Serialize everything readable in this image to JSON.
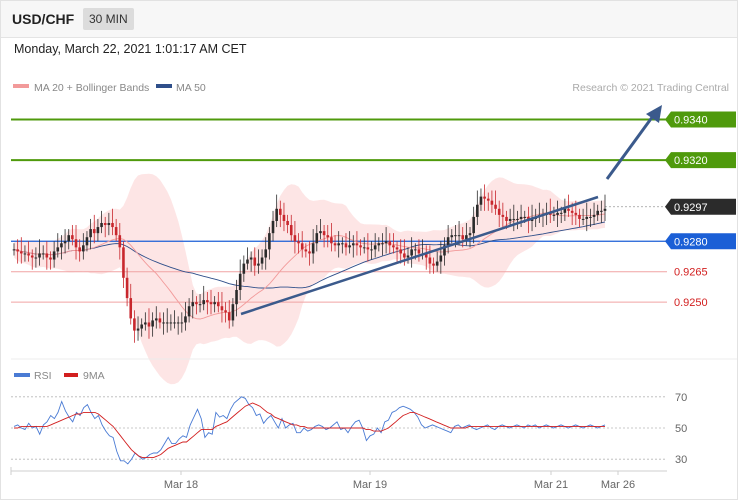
{
  "header": {
    "symbol": "USD/CHF",
    "timeframe": "30 MIN",
    "datetime": "Monday, March 22, 2021 1:01:17 AM CET"
  },
  "legend": {
    "ma20_label": "MA 20 + Bollinger Bands",
    "ma50_label": "MA 50",
    "ma20_color": "#f29a9a",
    "ma50_color": "#2f4f8a",
    "credit": "Research © 2021 Trading Central"
  },
  "colors": {
    "green": "#4f9a0c",
    "blue": "#1b5fd6",
    "red": "#d21f1f",
    "bull": "#2b2b2b",
    "bear": "#c8272d",
    "band": "#fde1e1",
    "trend": "#3b5a8c",
    "rsi": "#4a7bd4",
    "rsi_ma": "#d21f1f"
  },
  "chart_data": [
    {
      "type": "candlestick",
      "title": "",
      "ylim": [
        0.9222,
        0.9356
      ],
      "xlabels": [
        "Mar 18",
        "Mar 19",
        "Mar 21",
        "Mar 26"
      ],
      "close": [
        0.9276,
        0.9275,
        0.9274,
        0.9274,
        0.9273,
        0.9272,
        0.9272,
        0.9274,
        0.9274,
        0.9272,
        0.9271,
        0.9275,
        0.9277,
        0.9279,
        0.928,
        0.9283,
        0.9281,
        0.9277,
        0.9275,
        0.9278,
        0.9282,
        0.9286,
        0.9284,
        0.9287,
        0.9289,
        0.9288,
        0.9289,
        0.9287,
        0.9283,
        0.9277,
        0.9262,
        0.9252,
        0.9242,
        0.9236,
        0.9237,
        0.9239,
        0.924,
        0.9238,
        0.9241,
        0.9242,
        0.924,
        0.924,
        0.924,
        0.924,
        0.924,
        0.924,
        0.924,
        0.9243,
        0.9248,
        0.925,
        0.9249,
        0.9249,
        0.9251,
        0.925,
        0.9249,
        0.925,
        0.9248,
        0.9246,
        0.9245,
        0.9241,
        0.9249,
        0.9256,
        0.9264,
        0.9269,
        0.9271,
        0.9272,
        0.9268,
        0.9269,
        0.9272,
        0.9276,
        0.9284,
        0.929,
        0.9296,
        0.9293,
        0.929,
        0.9288,
        0.9283,
        0.928,
        0.9279,
        0.9276,
        0.9275,
        0.9274,
        0.9279,
        0.9284,
        0.9285,
        0.9283,
        0.9282,
        0.9279,
        0.9278,
        0.9279,
        0.9279,
        0.9277,
        0.9278,
        0.9279,
        0.9278,
        0.9277,
        0.9277,
        0.9276,
        0.9276,
        0.9278,
        0.9279,
        0.9279,
        0.928,
        0.9278,
        0.9277,
        0.9276,
        0.9274,
        0.9272,
        0.9273,
        0.9276,
        0.9276,
        0.9274,
        0.9274,
        0.9272,
        0.9269,
        0.9268,
        0.927,
        0.9273,
        0.9278,
        0.9282,
        0.9283,
        0.9283,
        0.9283,
        0.9281,
        0.9283,
        0.9284,
        0.9292,
        0.9298,
        0.9302,
        0.9301,
        0.93,
        0.9298,
        0.9296,
        0.9293,
        0.9292,
        0.929,
        0.9291,
        0.9291,
        0.9291,
        0.9292,
        0.9292,
        0.929,
        0.9291,
        0.9292,
        0.9293,
        0.9293,
        0.9294,
        0.9293,
        0.9293,
        0.9294,
        0.9294,
        0.9296,
        0.9295,
        0.9294,
        0.9293,
        0.9291,
        0.9291,
        0.9292,
        0.9292,
        0.9293,
        0.9295,
        0.9295,
        0.9296
      ],
      "levels": [
        {
          "label": "0.9340",
          "value": 0.934,
          "kind": "resistance-2"
        },
        {
          "label": "0.9320",
          "value": 0.932,
          "kind": "resistance-1"
        },
        {
          "label": "0.9297",
          "value": 0.9297,
          "kind": "last-price"
        },
        {
          "label": "0.9280",
          "value": 0.928,
          "kind": "pivot"
        },
        {
          "label": "0.9265",
          "value": 0.9265,
          "kind": "support-1"
        },
        {
          "label": "0.9250",
          "value": 0.925,
          "kind": "support-2"
        }
      ]
    },
    {
      "type": "line",
      "series": [
        {
          "name": "RSI",
          "values": [
            51,
            52,
            50,
            49,
            53,
            50,
            51,
            46,
            52,
            54,
            58,
            56,
            60,
            67,
            61,
            57,
            54,
            60,
            58,
            63,
            65,
            60,
            56,
            58,
            52,
            48,
            45,
            44,
            35,
            29,
            29,
            27,
            30,
            34,
            32,
            30,
            31,
            33,
            34,
            34,
            36,
            40,
            44,
            40,
            40,
            43,
            45,
            44,
            52,
            57,
            62,
            56,
            44,
            47,
            46,
            60,
            57,
            58,
            56,
            62,
            66,
            68,
            70,
            69,
            65,
            63,
            58,
            59,
            53,
            56,
            58,
            54,
            50,
            56,
            50,
            52,
            53,
            47,
            47,
            50,
            48,
            49,
            51,
            52,
            51,
            49,
            50,
            52,
            54,
            49,
            50,
            47,
            51,
            54,
            55,
            50,
            42,
            45,
            46,
            50,
            47,
            54,
            55,
            60,
            61,
            63,
            64,
            63,
            62,
            60,
            57,
            52,
            50,
            51,
            52,
            51,
            50,
            49,
            48,
            47,
            51,
            52,
            50,
            51,
            52,
            50,
            49,
            50,
            51,
            52,
            50,
            49,
            51,
            52,
            51,
            50,
            51,
            52,
            51,
            50,
            52,
            51,
            52,
            50,
            51,
            52,
            51,
            50,
            51,
            52,
            51,
            50,
            51,
            52,
            51,
            50,
            51,
            52,
            51,
            50,
            51,
            52
          ]
        },
        {
          "name": "9MA",
          "values": [
            50,
            50,
            51,
            51,
            51,
            51,
            51,
            51,
            51,
            51,
            52,
            53,
            54,
            55,
            56,
            57,
            58,
            59,
            59,
            60,
            60,
            60,
            60,
            59,
            57,
            55,
            53,
            51,
            48,
            45,
            42,
            39,
            36,
            34,
            32,
            31,
            31,
            31,
            31,
            32,
            33,
            35,
            37,
            38,
            39,
            40,
            41,
            41,
            43,
            45,
            47,
            49,
            49,
            49,
            49,
            51,
            52,
            53,
            54,
            56,
            58,
            60,
            62,
            64,
            65,
            66,
            65,
            64,
            62,
            60,
            59,
            57,
            56,
            55,
            54,
            53,
            52,
            52,
            51,
            51,
            50,
            50,
            50,
            50,
            50,
            50,
            50,
            50,
            50,
            50,
            50,
            50,
            50,
            50,
            50,
            50,
            49,
            49,
            48,
            48,
            48,
            49,
            50,
            52,
            54,
            56,
            58,
            59,
            60,
            60,
            59,
            58,
            57,
            56,
            55,
            54,
            53,
            52,
            51,
            50,
            50,
            50,
            50,
            50,
            51,
            51,
            51,
            51,
            51,
            51,
            51,
            51,
            51,
            51,
            51,
            51,
            51,
            51,
            51,
            51,
            51,
            51,
            51,
            51,
            51,
            51,
            51,
            51,
            51,
            51,
            51,
            51,
            51,
            51,
            51,
            51,
            51,
            51,
            51,
            51,
            51,
            51
          ]
        }
      ],
      "ylim": [
        25,
        75
      ],
      "yticks": [
        "70",
        "50",
        "30"
      ]
    }
  ]
}
